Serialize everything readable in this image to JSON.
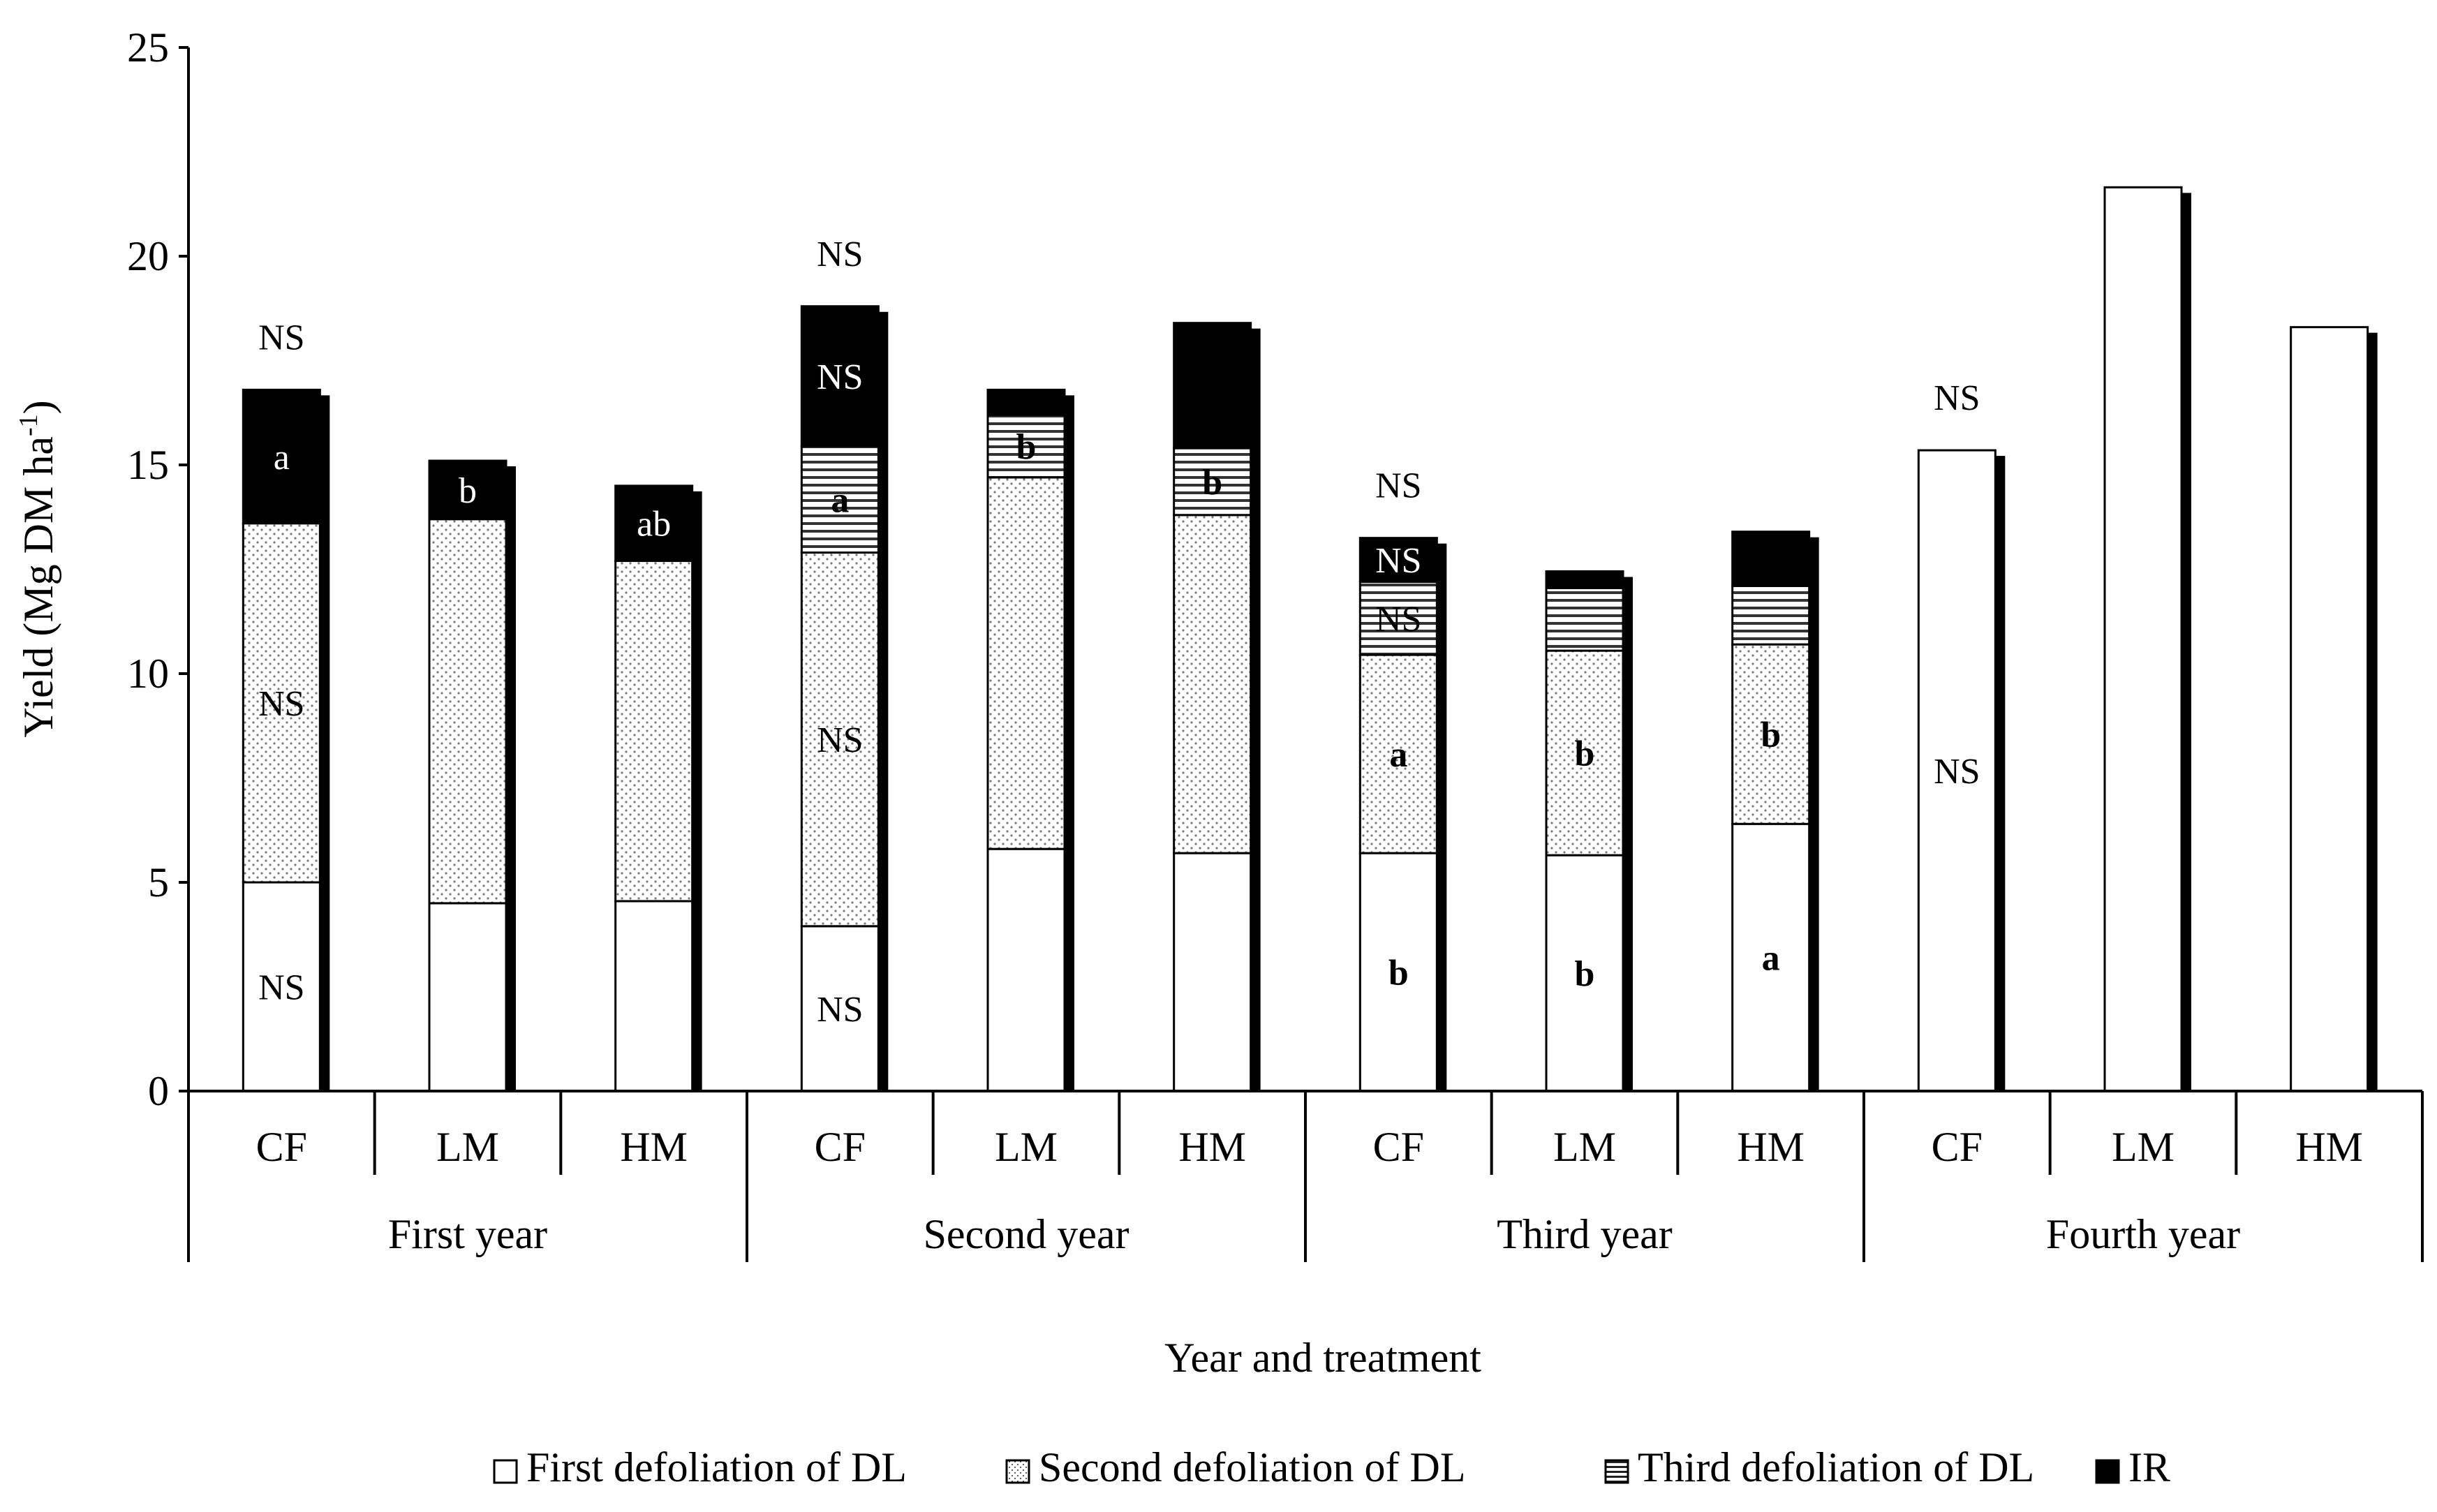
{
  "chart_data": {
    "type": "bar",
    "stacked": true,
    "ylabel": "Yield (Mg DM ha",
    "ylabel_sup": "-1",
    "ylabel_close": ")",
    "xlabel": "Year and treatment",
    "ylim": [
      0,
      25
    ],
    "yticks": [
      "0",
      "5",
      "10",
      "15",
      "20",
      "25"
    ],
    "groups": [
      "First year",
      "Second year",
      "Third year",
      "Fourth year"
    ],
    "categories": [
      "CF",
      "LM",
      "HM",
      "CF",
      "LM",
      "HM",
      "CF",
      "LM",
      "HM",
      "CF",
      "LM",
      "HM"
    ],
    "series": [
      {
        "name": "First defoliation of DL",
        "pattern": "white",
        "values": [
          5.0,
          4.5,
          4.55,
          3.95,
          5.8,
          5.7,
          5.7,
          5.65,
          6.4,
          15.35,
          21.65,
          18.3
        ]
      },
      {
        "name": "Second defoliation of DL",
        "pattern": "dots",
        "values": [
          8.6,
          9.2,
          8.15,
          8.95,
          8.9,
          8.1,
          4.75,
          4.9,
          4.3,
          0,
          0,
          0
        ]
      },
      {
        "name": "Third defoliation of DL",
        "pattern": "hlines",
        "values": [
          0,
          0,
          0,
          2.55,
          1.5,
          1.6,
          1.75,
          1.5,
          1.4,
          0,
          0,
          0
        ]
      },
      {
        "name": "IR",
        "pattern": "black",
        "values": [
          3.2,
          1.4,
          1.8,
          3.35,
          0.6,
          3.0,
          1.05,
          0.4,
          1.3,
          0,
          0,
          0
        ]
      }
    ],
    "annotations": [
      {
        "bar": 0,
        "value": 16.8,
        "text": "NS",
        "pos": "above"
      },
      {
        "bar": 0,
        "series": 0,
        "text": "NS"
      },
      {
        "bar": 0,
        "series": 1,
        "text": "NS"
      },
      {
        "bar": 0,
        "series": 3,
        "text": "a"
      },
      {
        "bar": 1,
        "series": 3,
        "text": "b"
      },
      {
        "bar": 2,
        "series": 3,
        "text": "ab"
      },
      {
        "bar": 3,
        "value": 18.8,
        "text": "NS",
        "pos": "above"
      },
      {
        "bar": 3,
        "series": 0,
        "text": "NS"
      },
      {
        "bar": 3,
        "series": 1,
        "text": "NS"
      },
      {
        "bar": 3,
        "series": 2,
        "text": "a"
      },
      {
        "bar": 3,
        "series": 3,
        "text": "NS"
      },
      {
        "bar": 4,
        "series": 2,
        "text": "b"
      },
      {
        "bar": 5,
        "series": 2,
        "text": "b"
      },
      {
        "bar": 6,
        "value": 13.25,
        "text": "NS",
        "pos": "above"
      },
      {
        "bar": 6,
        "series": 0,
        "text": "b"
      },
      {
        "bar": 6,
        "series": 1,
        "text": "a"
      },
      {
        "bar": 6,
        "series": 2,
        "text": "NS"
      },
      {
        "bar": 6,
        "series": 3,
        "text": "NS"
      },
      {
        "bar": 7,
        "series": 0,
        "text": "b"
      },
      {
        "bar": 7,
        "series": 1,
        "text": "b"
      },
      {
        "bar": 8,
        "series": 0,
        "text": "a"
      },
      {
        "bar": 8,
        "series": 1,
        "text": "b"
      },
      {
        "bar": 9,
        "value": 15.35,
        "text": "NS",
        "pos": "above"
      },
      {
        "bar": 9,
        "series": 0,
        "text": "NS"
      }
    ],
    "grid": false,
    "legend_position": "bottom"
  }
}
